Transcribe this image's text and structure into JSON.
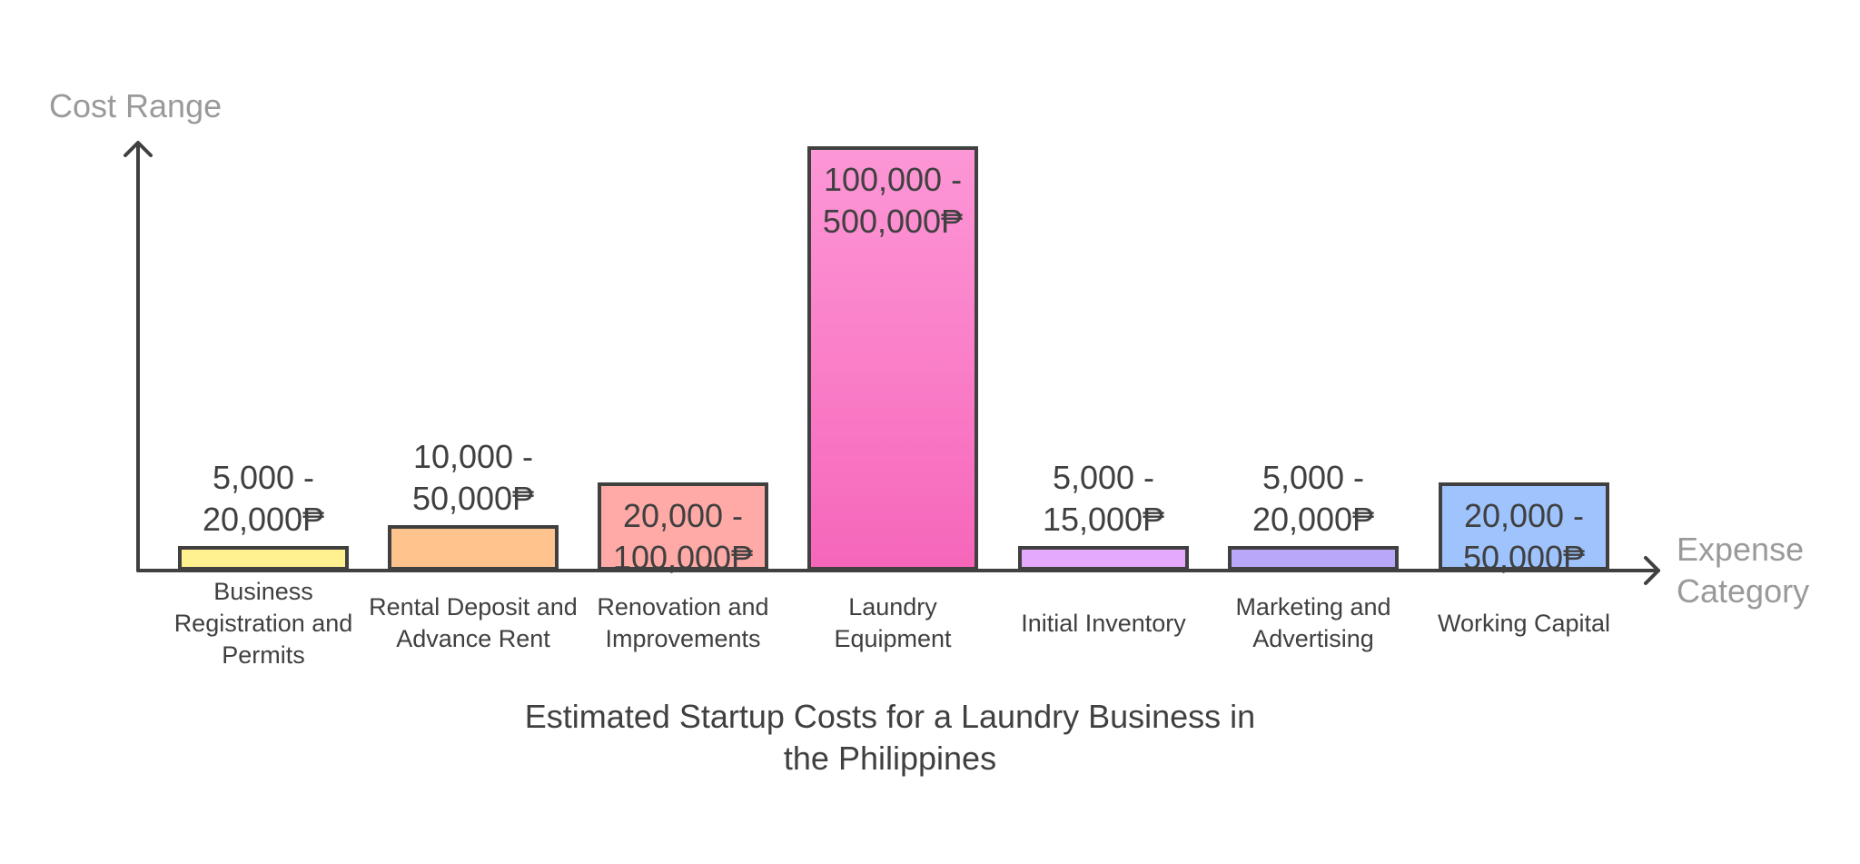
{
  "chart_data": {
    "type": "bar",
    "title": "Estimated Startup Costs for a Laundry Business in the Philippines",
    "ylabel": "Cost Range",
    "xlabel": "Expense Category",
    "currency": "₱",
    "grid": false,
    "legend": "none",
    "categories": [
      "Business Registration and Permits",
      "Rental Deposit and Advance Rent",
      "Renovation and Improvements",
      "Laundry Equipment",
      "Initial Inventory",
      "Marketing and Advertising",
      "Working Capital"
    ],
    "relative_height": [
      0.05,
      0.1,
      0.2,
      1.0,
      0.05,
      0.05,
      0.2
    ],
    "ranges": [
      {
        "min": 5000,
        "max": 20000
      },
      {
        "min": 10000,
        "max": 50000
      },
      {
        "min": 20000,
        "max": 100000
      },
      {
        "min": 100000,
        "max": 500000
      },
      {
        "min": 5000,
        "max": 15000
      },
      {
        "min": 5000,
        "max": 20000
      },
      {
        "min": 20000,
        "max": 50000
      }
    ],
    "value_labels": [
      "5,000 -\n20,000₱",
      "10,000 -\n50,000₱",
      "20,000 -\n100,000₱",
      "100,000 -\n500,000₱",
      "5,000 -\n15,000₱",
      "5,000 -\n20,000₱",
      "20,000 -\n50,000₱"
    ],
    "label_inside": [
      false,
      false,
      true,
      true,
      false,
      false,
      true
    ],
    "colors": [
      {
        "top": "#fff18f",
        "bottom": "#fff18f"
      },
      {
        "top": "#ffc38e",
        "bottom": "#ffc38e"
      },
      {
        "top": "#ffaaa6",
        "bottom": "#ffaaa6"
      },
      {
        "top": "#fd97d6",
        "bottom": "#f666ba"
      },
      {
        "top": "#e4a9fd",
        "bottom": "#e4a9fd"
      },
      {
        "top": "#b9a7fa",
        "bottom": "#b9a7fa"
      },
      {
        "top": "#9ec3fd",
        "bottom": "#9ec3fd"
      }
    ],
    "stroke_color": "#404040",
    "axis_title_color": "#9a9a9a"
  }
}
